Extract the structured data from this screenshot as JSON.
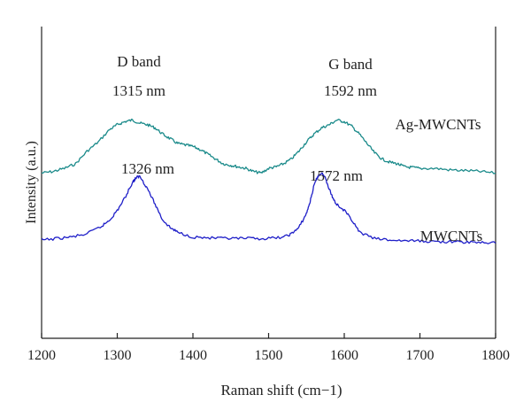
{
  "chart_data": {
    "type": "line",
    "xlabel": "Raman shift (cm−1)",
    "ylabel": "Intensity (a.u.)",
    "xlim": [
      1200,
      1800
    ],
    "x_ticks": [
      "1200",
      "1300",
      "1400",
      "1500",
      "1600",
      "1700",
      "1800"
    ],
    "ylim": [
      0,
      1
    ],
    "grid": false,
    "series": [
      {
        "name": "Ag-MWCNTs",
        "color": "#1a8a8a",
        "x": [
          1200,
          1215,
          1230,
          1245,
          1260,
          1275,
          1290,
          1300,
          1310,
          1320,
          1330,
          1340,
          1350,
          1360,
          1370,
          1380,
          1390,
          1400,
          1410,
          1420,
          1430,
          1440,
          1450,
          1460,
          1470,
          1480,
          1490,
          1500,
          1510,
          1520,
          1530,
          1540,
          1550,
          1560,
          1570,
          1580,
          1590,
          1600,
          1610,
          1620,
          1630,
          1640,
          1650,
          1660,
          1670,
          1680,
          1690,
          1700,
          1720,
          1740,
          1760,
          1780,
          1800
        ],
        "y": [
          0.53,
          0.535,
          0.545,
          0.56,
          0.6,
          0.63,
          0.67,
          0.685,
          0.695,
          0.7,
          0.69,
          0.685,
          0.675,
          0.655,
          0.64,
          0.625,
          0.62,
          0.615,
          0.605,
          0.59,
          0.575,
          0.56,
          0.555,
          0.55,
          0.545,
          0.535,
          0.53,
          0.545,
          0.55,
          0.56,
          0.575,
          0.6,
          0.63,
          0.655,
          0.675,
          0.685,
          0.7,
          0.695,
          0.68,
          0.655,
          0.625,
          0.595,
          0.575,
          0.565,
          0.56,
          0.55,
          0.548,
          0.545,
          0.545,
          0.54,
          0.538,
          0.535,
          0.53
        ]
      },
      {
        "name": "MWCNTs",
        "color": "#1e1ec8",
        "x": [
          1200,
          1220,
          1240,
          1260,
          1280,
          1290,
          1300,
          1310,
          1320,
          1325,
          1330,
          1340,
          1350,
          1360,
          1370,
          1380,
          1400,
          1420,
          1440,
          1460,
          1480,
          1500,
          1520,
          1530,
          1540,
          1550,
          1555,
          1560,
          1565,
          1570,
          1575,
          1580,
          1585,
          1590,
          1600,
          1610,
          1620,
          1640,
          1660,
          1680,
          1700,
          1720,
          1740,
          1760,
          1780,
          1800
        ],
        "y": [
          0.315,
          0.32,
          0.325,
          0.335,
          0.36,
          0.38,
          0.41,
          0.45,
          0.5,
          0.515,
          0.52,
          0.48,
          0.43,
          0.38,
          0.355,
          0.34,
          0.325,
          0.322,
          0.32,
          0.32,
          0.32,
          0.32,
          0.325,
          0.335,
          0.355,
          0.4,
          0.44,
          0.49,
          0.52,
          0.53,
          0.515,
          0.48,
          0.45,
          0.43,
          0.41,
          0.38,
          0.34,
          0.32,
          0.315,
          0.313,
          0.312,
          0.31,
          0.31,
          0.308,
          0.308,
          0.305
        ]
      }
    ],
    "annotations": {
      "d_band": "D band",
      "g_band": "G band",
      "ag_d_peak": "1315 nm",
      "ag_g_peak": "1592 nm",
      "mw_d_peak": "1326 nm",
      "mw_g_peak": "1572 nm",
      "ag_series_label": "Ag-MWCNTs",
      "mw_series_label": "MWCNTs"
    }
  }
}
